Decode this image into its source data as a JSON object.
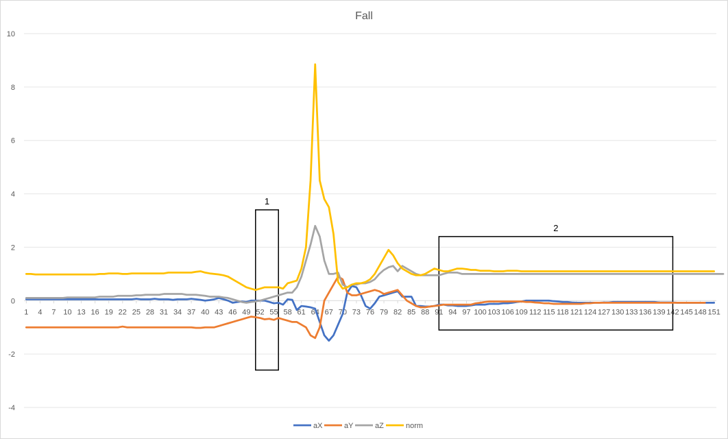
{
  "chart_data": {
    "type": "line",
    "title": "Fall",
    "ylim": [
      -4,
      10
    ],
    "yticks": [
      -4,
      -2,
      0,
      2,
      4,
      6,
      8,
      10
    ],
    "xtick_labels": [
      "1",
      "4",
      "7",
      "10",
      "13",
      "16",
      "19",
      "22",
      "25",
      "28",
      "31",
      "34",
      "37",
      "40",
      "43",
      "46",
      "49",
      "52",
      "55",
      "58",
      "61",
      "64",
      "67",
      "70",
      "73",
      "76",
      "79",
      "82",
      "85",
      "88",
      "91",
      "94",
      "97",
      "100",
      "103",
      "106",
      "109",
      "112",
      "115",
      "118",
      "121",
      "124",
      "127",
      "130",
      "133",
      "136",
      "139",
      "142",
      "145",
      "148",
      "151"
    ],
    "grid": true,
    "legend": "bottom",
    "series": [
      {
        "name": "aX",
        "color": "#4472C4",
        "values": [
          0.05,
          0.05,
          0.05,
          0.05,
          0.05,
          0.05,
          0.05,
          0.05,
          0.05,
          0.05,
          0.05,
          0.05,
          0.05,
          0.05,
          0.05,
          0.05,
          0.05,
          0.05,
          0.05,
          0.05,
          0.05,
          0.05,
          0.05,
          0.05,
          0.07,
          0.05,
          0.05,
          0.05,
          0.07,
          0.05,
          0.05,
          0.05,
          0.03,
          0.05,
          0.05,
          0.05,
          0.07,
          0.05,
          0.03,
          0.0,
          0.02,
          0.05,
          0.1,
          0.05,
          0.0,
          -0.08,
          -0.05,
          -0.03,
          -0.05,
          0.0,
          0.0,
          0.0,
          0.0,
          -0.05,
          -0.1,
          -0.08,
          -0.15,
          0.05,
          0.03,
          -0.35,
          -0.2,
          -0.22,
          -0.25,
          -0.3,
          -0.8,
          -1.3,
          -1.5,
          -1.3,
          -0.9,
          -0.5,
          0.3,
          0.55,
          0.5,
          0.2,
          -0.2,
          -0.3,
          -0.1,
          0.15,
          0.2,
          0.25,
          0.3,
          0.35,
          0.15,
          0.15,
          0.15,
          -0.2,
          -0.2,
          -0.22,
          -0.22,
          -0.2,
          -0.15,
          -0.15,
          -0.18,
          -0.18,
          -0.2,
          -0.2,
          -0.2,
          -0.18,
          -0.15,
          -0.15,
          -0.15,
          -0.12,
          -0.12,
          -0.12,
          -0.1,
          -0.1,
          -0.08,
          -0.05,
          -0.03,
          0.0,
          0.0,
          0.0,
          0.0,
          0.0,
          0.0,
          -0.02,
          -0.03,
          -0.05,
          -0.05,
          -0.07,
          -0.08,
          -0.08,
          -0.08,
          -0.08,
          -0.08,
          -0.08,
          -0.07,
          -0.07,
          -0.05,
          -0.05,
          -0.05,
          -0.05,
          -0.05,
          -0.05,
          -0.05,
          -0.05,
          -0.05,
          -0.05,
          -0.07,
          -0.07,
          -0.07,
          -0.07,
          -0.08,
          -0.08,
          -0.08,
          -0.08,
          -0.08,
          -0.08,
          -0.08,
          -0.08,
          -0.08
        ]
      },
      {
        "name": "aY",
        "color": "#ED7D31",
        "values": [
          -1.0,
          -1.0,
          -1.0,
          -1.0,
          -1.0,
          -1.0,
          -1.0,
          -1.0,
          -1.0,
          -1.0,
          -1.0,
          -1.0,
          -1.0,
          -1.0,
          -1.0,
          -1.0,
          -1.0,
          -1.0,
          -1.0,
          -1.0,
          -1.0,
          -0.97,
          -1.0,
          -1.0,
          -1.0,
          -1.0,
          -1.0,
          -1.0,
          -1.0,
          -1.0,
          -1.0,
          -1.0,
          -1.0,
          -1.0,
          -1.0,
          -1.0,
          -1.0,
          -1.02,
          -1.02,
          -1.0,
          -1.0,
          -1.0,
          -0.95,
          -0.9,
          -0.85,
          -0.8,
          -0.75,
          -0.7,
          -0.65,
          -0.6,
          -0.62,
          -0.65,
          -0.7,
          -0.68,
          -0.72,
          -0.65,
          -0.7,
          -0.75,
          -0.8,
          -0.8,
          -0.9,
          -1.0,
          -1.3,
          -1.4,
          -1.0,
          0.0,
          0.3,
          0.6,
          0.9,
          0.8,
          0.3,
          0.2,
          0.2,
          0.25,
          0.3,
          0.35,
          0.4,
          0.35,
          0.25,
          0.3,
          0.35,
          0.4,
          0.2,
          0.0,
          -0.1,
          -0.2,
          -0.25,
          -0.25,
          -0.22,
          -0.2,
          -0.18,
          -0.15,
          -0.15,
          -0.15,
          -0.15,
          -0.15,
          -0.15,
          -0.15,
          -0.1,
          -0.08,
          -0.05,
          -0.03,
          -0.03,
          -0.03,
          -0.03,
          -0.03,
          -0.03,
          -0.03,
          -0.03,
          -0.05,
          -0.05,
          -0.07,
          -0.08,
          -0.1,
          -0.1,
          -0.12,
          -0.12,
          -0.12,
          -0.12,
          -0.12,
          -0.12,
          -0.12,
          -0.1,
          -0.1,
          -0.08,
          -0.08,
          -0.08,
          -0.08,
          -0.08,
          -0.08,
          -0.08,
          -0.08,
          -0.08,
          -0.08,
          -0.08,
          -0.08,
          -0.08,
          -0.08,
          -0.08,
          -0.08,
          -0.08,
          -0.08,
          -0.08,
          -0.08,
          -0.08,
          -0.08,
          -0.08,
          -0.08,
          -0.08
        ]
      },
      {
        "name": "aZ",
        "color": "#A5A5A5",
        "values": [
          0.1,
          0.1,
          0.1,
          0.1,
          0.1,
          0.1,
          0.1,
          0.1,
          0.1,
          0.12,
          0.12,
          0.12,
          0.12,
          0.12,
          0.12,
          0.12,
          0.15,
          0.15,
          0.15,
          0.15,
          0.18,
          0.18,
          0.18,
          0.18,
          0.2,
          0.2,
          0.22,
          0.22,
          0.22,
          0.22,
          0.25,
          0.25,
          0.25,
          0.25,
          0.25,
          0.22,
          0.22,
          0.22,
          0.2,
          0.18,
          0.15,
          0.15,
          0.15,
          0.12,
          0.1,
          0.05,
          0.0,
          -0.05,
          -0.08,
          -0.05,
          -0.03,
          0.0,
          0.05,
          0.1,
          0.15,
          0.2,
          0.25,
          0.3,
          0.3,
          0.5,
          0.9,
          1.5,
          2.1,
          2.8,
          2.4,
          1.5,
          1.0,
          1.0,
          1.05,
          0.6,
          0.5,
          0.6,
          0.6,
          0.65,
          0.65,
          0.7,
          0.8,
          1.0,
          1.15,
          1.25,
          1.3,
          1.1,
          1.3,
          1.2,
          1.1,
          1.0,
          0.95,
          0.95,
          0.95,
          0.95,
          0.95,
          1.0,
          1.05,
          1.05,
          1.05,
          1.0,
          1.0,
          1.0,
          1.0,
          1.0,
          1.0,
          1.0,
          1.0,
          1.0,
          1.0,
          1.0,
          1.0,
          1.0,
          1.0,
          1.0,
          1.0,
          1.0,
          1.0,
          1.0,
          1.0,
          1.0,
          1.0,
          1.0,
          1.0,
          1.0,
          1.0,
          1.0,
          1.0,
          1.0,
          1.0,
          1.0,
          1.0,
          1.0,
          1.0,
          1.0,
          1.0,
          1.0,
          1.0,
          1.0,
          1.0,
          1.0,
          1.0,
          1.0,
          1.0,
          1.0,
          1.0,
          1.0,
          1.0,
          1.0,
          1.0,
          1.0,
          1.0,
          1.0,
          1.0,
          1.0,
          1.0,
          1.0,
          1.0
        ]
      },
      {
        "name": "norm",
        "color": "#FFC000",
        "values": [
          1.0,
          1.0,
          0.98,
          0.98,
          0.98,
          0.98,
          0.98,
          0.98,
          0.98,
          0.98,
          0.98,
          0.98,
          0.98,
          0.98,
          0.98,
          0.98,
          1.0,
          1.0,
          1.02,
          1.02,
          1.02,
          1.0,
          1.0,
          1.02,
          1.02,
          1.02,
          1.02,
          1.02,
          1.02,
          1.02,
          1.02,
          1.05,
          1.05,
          1.05,
          1.05,
          1.05,
          1.05,
          1.08,
          1.1,
          1.05,
          1.02,
          1.0,
          0.98,
          0.95,
          0.9,
          0.8,
          0.7,
          0.6,
          0.5,
          0.45,
          0.4,
          0.45,
          0.5,
          0.5,
          0.5,
          0.5,
          0.45,
          0.65,
          0.7,
          0.75,
          1.2,
          2.0,
          4.5,
          8.85,
          4.5,
          3.8,
          3.5,
          2.5,
          0.7,
          0.45,
          0.5,
          0.6,
          0.65,
          0.65,
          0.7,
          0.8,
          1.0,
          1.3,
          1.6,
          1.9,
          1.7,
          1.4,
          1.2,
          1.1,
          1.0,
          0.95,
          0.95,
          1.0,
          1.1,
          1.2,
          1.15,
          1.1,
          1.1,
          1.15,
          1.2,
          1.2,
          1.18,
          1.15,
          1.15,
          1.12,
          1.12,
          1.12,
          1.1,
          1.1,
          1.1,
          1.12,
          1.12,
          1.12,
          1.1,
          1.1,
          1.1,
          1.1,
          1.1,
          1.1,
          1.1,
          1.1,
          1.1,
          1.1,
          1.1,
          1.1,
          1.1,
          1.1,
          1.1,
          1.1,
          1.1,
          1.1,
          1.1,
          1.1,
          1.1,
          1.1,
          1.1,
          1.1,
          1.1,
          1.1,
          1.1,
          1.1,
          1.1,
          1.1,
          1.1,
          1.1,
          1.1,
          1.1,
          1.1,
          1.1,
          1.1,
          1.1,
          1.1,
          1.1,
          1.1,
          1.1,
          1.1
        ]
      }
    ],
    "annotations": [
      {
        "label": "1",
        "x_start": 51,
        "x_end": 56,
        "y_top": 3.4,
        "y_bottom": -2.6
      },
      {
        "label": "2",
        "x_start": 91,
        "x_end": 142,
        "y_top": 2.4,
        "y_bottom": -1.1
      }
    ]
  }
}
